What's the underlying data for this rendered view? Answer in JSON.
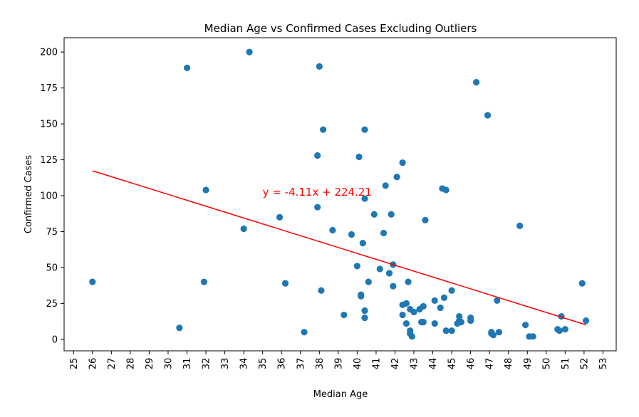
{
  "chart_data": {
    "type": "scatter",
    "title": "Median Age vs Confirmed Cases Excluding Outliers",
    "xlabel": "Median Age",
    "ylabel": "Confirmed Cases",
    "xlim": [
      24.5,
      53.7
    ],
    "ylim": [
      -8,
      210
    ],
    "x_ticks": [
      25,
      26,
      27,
      28,
      29,
      30,
      31,
      32,
      33,
      34,
      35,
      36,
      37,
      38,
      39,
      40,
      41,
      42,
      43,
      44,
      45,
      46,
      47,
      48,
      49,
      50,
      51,
      52,
      53
    ],
    "y_ticks": [
      0,
      25,
      50,
      75,
      100,
      125,
      150,
      175,
      200
    ],
    "grid": false,
    "point_color": "#1f77b4",
    "line_color": "#ff0000",
    "points": [
      [
        26,
        40
      ],
      [
        30.6,
        8
      ],
      [
        31,
        189
      ],
      [
        31.9,
        40
      ],
      [
        32,
        104
      ],
      [
        34,
        77
      ],
      [
        34.3,
        200
      ],
      [
        35.9,
        85
      ],
      [
        36.2,
        39
      ],
      [
        37.2,
        5
      ],
      [
        37.9,
        128
      ],
      [
        37.9,
        92
      ],
      [
        38,
        190
      ],
      [
        38.1,
        34
      ],
      [
        38.2,
        146
      ],
      [
        38.7,
        76
      ],
      [
        39.3,
        17
      ],
      [
        39.7,
        73
      ],
      [
        40,
        51
      ],
      [
        40.1,
        127
      ],
      [
        40.2,
        31
      ],
      [
        40.2,
        30
      ],
      [
        40.3,
        67
      ],
      [
        40.4,
        146
      ],
      [
        40.4,
        98
      ],
      [
        40.4,
        20
      ],
      [
        40.4,
        15
      ],
      [
        40.6,
        40
      ],
      [
        40.9,
        87
      ],
      [
        41.2,
        49
      ],
      [
        41.4,
        74
      ],
      [
        41.5,
        107
      ],
      [
        41.7,
        46
      ],
      [
        41.8,
        87
      ],
      [
        41.9,
        52
      ],
      [
        41.9,
        37
      ],
      [
        42.1,
        113
      ],
      [
        42.4,
        123
      ],
      [
        42.4,
        24
      ],
      [
        42.4,
        17
      ],
      [
        42.6,
        11
      ],
      [
        42.6,
        25
      ],
      [
        42.7,
        40
      ],
      [
        42.8,
        21
      ],
      [
        42.8,
        6
      ],
      [
        42.8,
        4
      ],
      [
        42.9,
        2
      ],
      [
        43,
        19
      ],
      [
        43.3,
        21
      ],
      [
        43.4,
        12
      ],
      [
        43.5,
        12
      ],
      [
        43.5,
        23
      ],
      [
        43.6,
        83
      ],
      [
        44.1,
        27
      ],
      [
        44.1,
        11
      ],
      [
        44.4,
        22
      ],
      [
        44.5,
        105
      ],
      [
        44.6,
        29
      ],
      [
        44.7,
        104
      ],
      [
        44.7,
        6
      ],
      [
        45,
        34
      ],
      [
        45,
        6
      ],
      [
        45.3,
        11
      ],
      [
        45.4,
        16
      ],
      [
        45.4,
        13
      ],
      [
        45.5,
        12
      ],
      [
        46,
        15
      ],
      [
        46,
        13
      ],
      [
        46.3,
        179
      ],
      [
        46.9,
        156
      ],
      [
        47.1,
        5
      ],
      [
        47.1,
        4
      ],
      [
        47.2,
        3
      ],
      [
        47.4,
        27
      ],
      [
        47.5,
        5
      ],
      [
        48.6,
        79
      ],
      [
        48.9,
        10
      ],
      [
        49.1,
        2
      ],
      [
        49.3,
        2
      ],
      [
        50.6,
        7
      ],
      [
        50.7,
        6
      ],
      [
        50.8,
        16
      ],
      [
        51,
        7
      ],
      [
        51.9,
        39
      ],
      [
        52.1,
        13
      ]
    ],
    "regression": {
      "slope": -4.11,
      "intercept": 224.21,
      "x_range": [
        26,
        52.1
      ]
    },
    "annotation": {
      "text": "y = -4.11x + 224.21",
      "x": 35,
      "y": 100,
      "color": "#ff0000"
    }
  }
}
